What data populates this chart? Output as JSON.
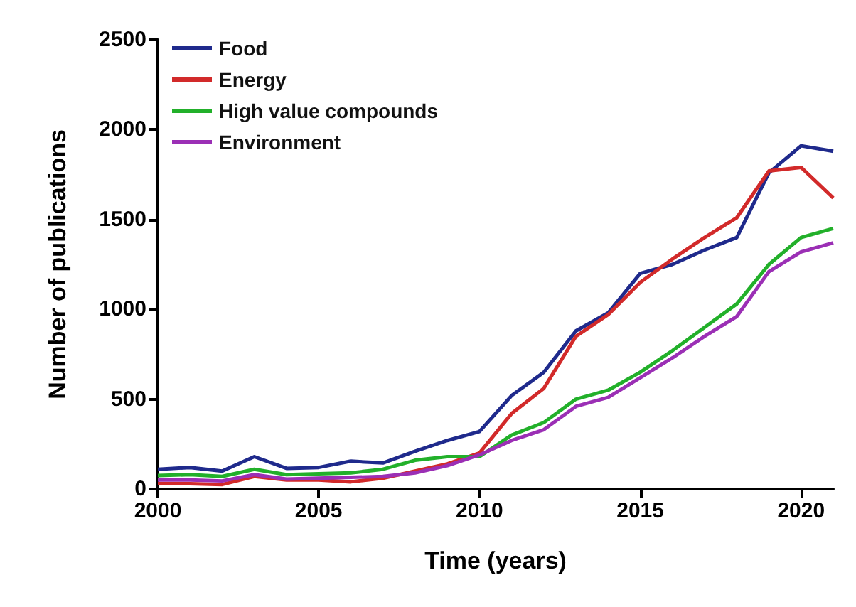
{
  "chart_data": {
    "type": "line",
    "xlabel": "Time (years)",
    "ylabel": "Number of publications",
    "x": [
      2000,
      2001,
      2002,
      2003,
      2004,
      2005,
      2006,
      2007,
      2008,
      2009,
      2010,
      2011,
      2012,
      2013,
      2014,
      2015,
      2016,
      2017,
      2018,
      2019,
      2020,
      2021
    ],
    "series": [
      {
        "name": "Food",
        "color": "#1f2a8c",
        "values": [
          110,
          120,
          100,
          180,
          115,
          120,
          155,
          145,
          210,
          270,
          320,
          520,
          650,
          880,
          980,
          1200,
          1250,
          1330,
          1400,
          1760,
          1910,
          1880
        ]
      },
      {
        "name": "Energy",
        "color": "#d22a2a",
        "values": [
          30,
          30,
          25,
          70,
          50,
          50,
          40,
          60,
          100,
          140,
          200,
          420,
          560,
          850,
          970,
          1150,
          1280,
          1400,
          1510,
          1770,
          1790,
          1620
        ]
      },
      {
        "name": "High value compounds",
        "color": "#22b02a",
        "values": [
          75,
          80,
          70,
          110,
          80,
          85,
          90,
          110,
          160,
          180,
          180,
          300,
          370,
          500,
          550,
          650,
          770,
          900,
          1030,
          1250,
          1400,
          1450
        ]
      },
      {
        "name": "Environment",
        "color": "#9b2fb5",
        "values": [
          50,
          50,
          45,
          80,
          55,
          60,
          65,
          70,
          90,
          130,
          190,
          270,
          330,
          460,
          510,
          620,
          730,
          850,
          960,
          1210,
          1320,
          1370
        ]
      }
    ],
    "xlim": [
      2000,
      2021
    ],
    "xticks": [
      2000,
      2005,
      2010,
      2015,
      2020
    ],
    "ylim": [
      0,
      2500
    ],
    "yticks": [
      0,
      500,
      1000,
      1500,
      2000,
      2500
    ],
    "grid": false,
    "legend": "top left",
    "marker": "none",
    "line_style": "solid"
  }
}
